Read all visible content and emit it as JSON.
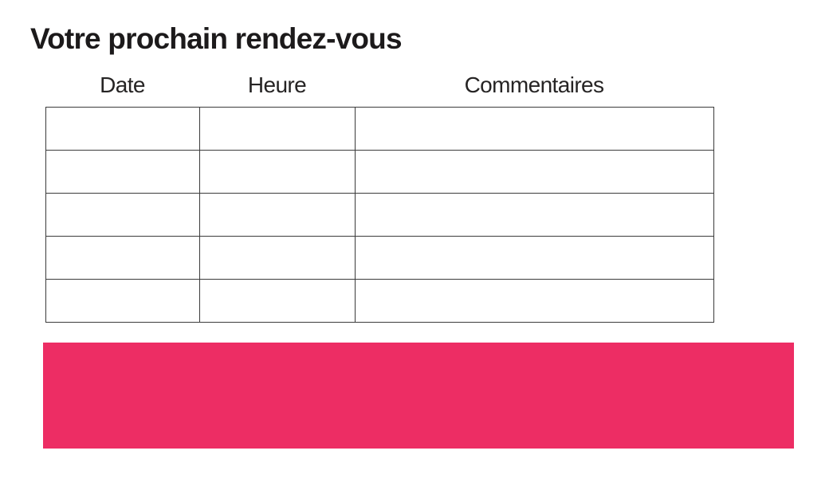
{
  "page": {
    "background": "#ffffff"
  },
  "title": {
    "text": "Votre prochain rendez-vous",
    "color": "#1c1a1b"
  },
  "table": {
    "headers": [
      "Date",
      "Heure",
      "Commentaires"
    ],
    "rows": [
      [
        "",
        "",
        ""
      ],
      [
        "",
        "",
        ""
      ],
      [
        "",
        "",
        ""
      ],
      [
        "",
        "",
        ""
      ],
      [
        "",
        "",
        ""
      ]
    ],
    "border_color": "#3b3b3b",
    "header_color": "#262424"
  },
  "banner": {
    "color": "#ed2d64",
    "text": ""
  }
}
